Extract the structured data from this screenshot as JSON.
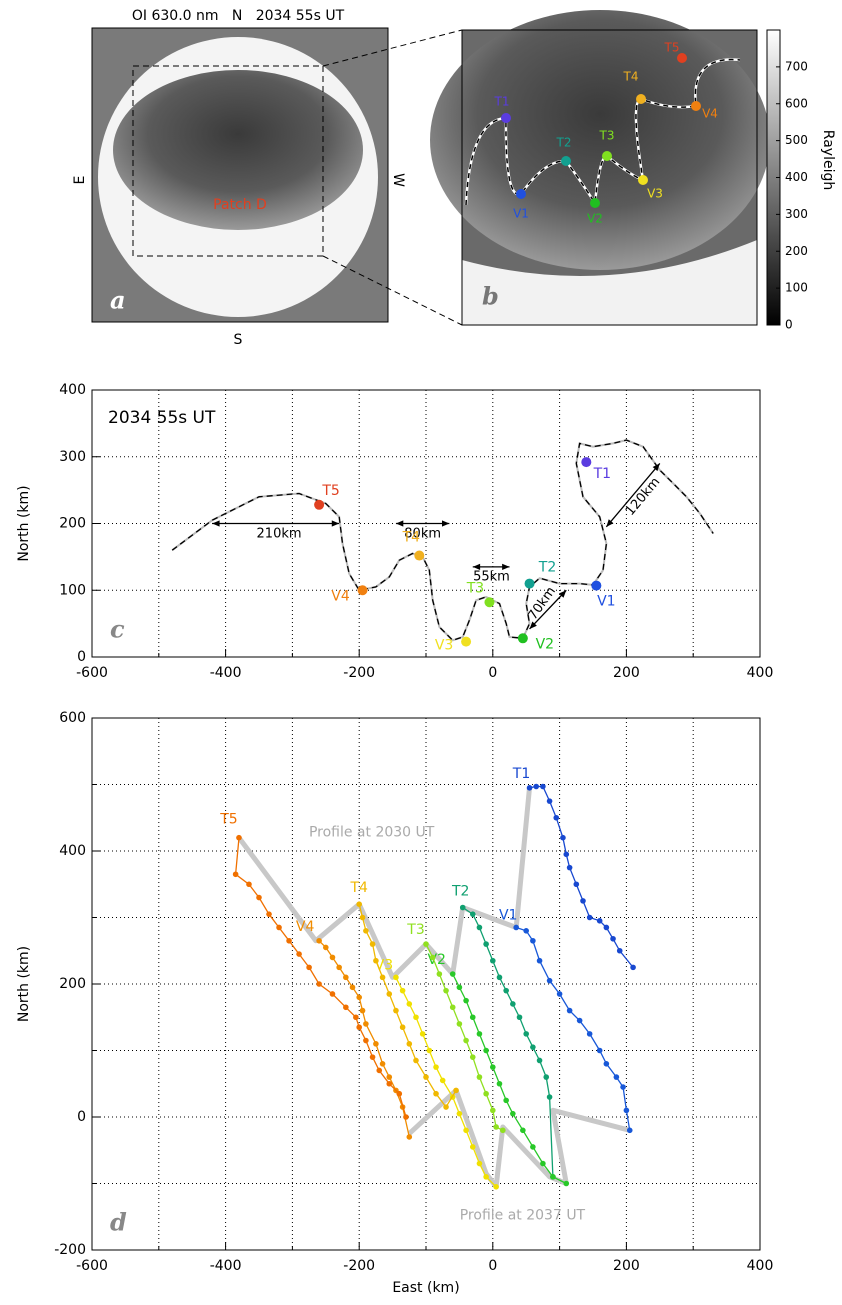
{
  "panel_a": {
    "title": "OI 630.0 nm   N   2034 55s UT",
    "east": "E",
    "west": "W",
    "south": "S",
    "patch": "Patch D",
    "letter": "a"
  },
  "panel_b": {
    "letter": "b"
  },
  "colorbar": {
    "label": "Rayleigh",
    "lim": [
      0,
      800
    ],
    "ticks": [
      0,
      100,
      200,
      300,
      400,
      500,
      600,
      700
    ]
  },
  "chart_data": [
    {
      "type": "line",
      "annotation": "2034 55s UT",
      "letter": "c",
      "ylabel": "North (km)",
      "xlim": [
        -600,
        400
      ],
      "xticks": [
        -600,
        -400,
        -200,
        0,
        200,
        400
      ],
      "xminor": [
        -500,
        -300,
        -100,
        100,
        300
      ],
      "ylim": [
        0,
        400
      ],
      "yticks": [
        0,
        100,
        200,
        300,
        400
      ],
      "grid": true,
      "profile": {
        "x": [
          -480,
          -420,
          -350,
          -290,
          -250,
          -230,
          -225,
          -215,
          -200,
          -175,
          -155,
          -140,
          -120,
          -105,
          -95,
          -90,
          -80,
          -60,
          -45,
          -35,
          -25,
          -10,
          10,
          20,
          25,
          45,
          55,
          50,
          55,
          70,
          100,
          130,
          150,
          165,
          170,
          160,
          135,
          125,
          130,
          150,
          180,
          200,
          225,
          250,
          270,
          290,
          310,
          330
        ],
        "y": [
          160,
          205,
          240,
          245,
          230,
          210,
          170,
          125,
          100,
          105,
          120,
          145,
          155,
          150,
          130,
          85,
          45,
          25,
          30,
          55,
          85,
          90,
          80,
          50,
          30,
          28,
          50,
          80,
          105,
          118,
          110,
          110,
          108,
          130,
          170,
          210,
          240,
          290,
          320,
          315,
          320,
          325,
          315,
          280,
          260,
          240,
          215,
          185
        ]
      },
      "points": [
        {
          "name": "T1",
          "color": "#5a3ce0",
          "x": 140,
          "y": 292
        },
        {
          "name": "V1",
          "color": "#2050e0",
          "x": 155,
          "y": 107
        },
        {
          "name": "T2",
          "color": "#12a090",
          "x": 55,
          "y": 110
        },
        {
          "name": "V2",
          "color": "#20c020",
          "x": 45,
          "y": 28
        },
        {
          "name": "T3",
          "color": "#80e020",
          "x": -5,
          "y": 82
        },
        {
          "name": "V3",
          "color": "#f0e020",
          "x": -40,
          "y": 23
        },
        {
          "name": "T4",
          "color": "#f0b020",
          "x": -110,
          "y": 152
        },
        {
          "name": "V4",
          "color": "#f08010",
          "x": -195,
          "y": 100
        },
        {
          "name": "T5",
          "color": "#e04020",
          "x": -260,
          "y": 228
        }
      ],
      "spans": [
        {
          "label": "210km"
        },
        {
          "label": "80km"
        },
        {
          "label": "55km"
        },
        {
          "label": "70km"
        },
        {
          "label": "120km"
        }
      ]
    },
    {
      "type": "line",
      "letter": "d",
      "xlabel": "East (km)",
      "ylabel": "North (km)",
      "xlim": [
        -600,
        400
      ],
      "xticks": [
        -600,
        -400,
        -200,
        0,
        200,
        400
      ],
      "xminor": [
        -500,
        -300,
        -100,
        100,
        300
      ],
      "ylim": [
        -200,
        600
      ],
      "yticks": [
        -200,
        0,
        200,
        400,
        600
      ],
      "yminor": [
        -100,
        100,
        300,
        500
      ],
      "grid": true,
      "profiles": [
        {
          "name": "Profile at 2030 UT",
          "color": "#c8c8c8",
          "x": [
            -380,
            -265,
            -200,
            -150,
            -100,
            -60,
            -45,
            35,
            55
          ],
          "y": [
            420,
            265,
            320,
            210,
            260,
            215,
            315,
            285,
            495
          ]
        },
        {
          "name": "Profile at 2037 UT",
          "color": "#c8c8c8",
          "x": [
            -125,
            -55,
            -10,
            5,
            15,
            85,
            110,
            90,
            205
          ],
          "y": [
            -25,
            40,
            -85,
            -105,
            -15,
            -90,
            -100,
            10,
            -20
          ]
        }
      ],
      "series": [
        {
          "name": "T1",
          "color": "#1848d0",
          "x": [
            55,
            65,
            75,
            85,
            95,
            105,
            110,
            115,
            125,
            135,
            145,
            160,
            170,
            180,
            190,
            210
          ],
          "y": [
            495,
            497,
            497,
            475,
            450,
            420,
            395,
            375,
            350,
            325,
            300,
            295,
            285,
            268,
            250,
            225
          ]
        },
        {
          "name": "V1",
          "color": "#1858d8",
          "x": [
            35,
            50,
            60,
            70,
            85,
            100,
            115,
            130,
            145,
            160,
            170,
            185,
            195,
            200,
            205
          ],
          "y": [
            285,
            280,
            265,
            235,
            205,
            185,
            160,
            145,
            125,
            100,
            80,
            60,
            45,
            10,
            -20
          ]
        },
        {
          "name": "T2",
          "color": "#10a070",
          "x": [
            -45,
            -30,
            -20,
            -10,
            0,
            10,
            20,
            30,
            40,
            50,
            60,
            70,
            80,
            85,
            90
          ],
          "y": [
            315,
            305,
            285,
            260,
            235,
            210,
            190,
            170,
            150,
            125,
            105,
            85,
            60,
            30,
            -90
          ]
        },
        {
          "name": "V2",
          "color": "#28c828",
          "x": [
            -60,
            -50,
            -40,
            -30,
            -20,
            -10,
            0,
            10,
            20,
            30,
            45,
            60,
            75,
            90,
            110
          ],
          "y": [
            215,
            195,
            175,
            150,
            125,
            100,
            75,
            50,
            25,
            5,
            -20,
            -45,
            -70,
            -90,
            -100
          ]
        },
        {
          "name": "T3",
          "color": "#90e020",
          "x": [
            -100,
            -90,
            -80,
            -70,
            -60,
            -50,
            -40,
            -30,
            -20,
            -10,
            0,
            5,
            15
          ],
          "y": [
            260,
            240,
            215,
            190,
            165,
            140,
            115,
            90,
            60,
            35,
            10,
            -15,
            -20
          ]
        },
        {
          "name": "V3",
          "color": "#f0e000",
          "x": [
            -145,
            -135,
            -125,
            -115,
            -105,
            -95,
            -85,
            -75,
            -60,
            -50,
            -40,
            -30,
            -20,
            -10,
            5
          ],
          "y": [
            210,
            190,
            170,
            150,
            125,
            100,
            75,
            55,
            30,
            5,
            -20,
            -45,
            -70,
            -90,
            -105
          ]
        },
        {
          "name": "T4",
          "color": "#f0b800",
          "x": [
            -200,
            -195,
            -190,
            -180,
            -175,
            -165,
            -155,
            -145,
            -135,
            -125,
            -115,
            -100,
            -85,
            -70,
            -55
          ],
          "y": [
            320,
            300,
            280,
            260,
            235,
            210,
            185,
            160,
            135,
            110,
            85,
            60,
            35,
            15,
            40
          ]
        },
        {
          "name": "V4",
          "color": "#f08c00",
          "x": [
            -260,
            -250,
            -240,
            -230,
            -220,
            -210,
            -200,
            -195,
            -190,
            -175,
            -165,
            -155,
            -145,
            -135,
            -125
          ],
          "y": [
            265,
            255,
            240,
            225,
            210,
            195,
            180,
            160,
            140,
            110,
            80,
            60,
            40,
            15,
            -30
          ]
        },
        {
          "name": "T5",
          "color": "#f07000",
          "x": [
            -380,
            -385,
            -365,
            -350,
            -335,
            -320,
            -305,
            -290,
            -275,
            -260,
            -240,
            -220,
            -205,
            -200,
            -190,
            -180,
            -170,
            -155,
            -140,
            -130
          ],
          "y": [
            420,
            365,
            350,
            330,
            305,
            285,
            265,
            245,
            225,
            200,
            185,
            165,
            150,
            135,
            115,
            90,
            70,
            50,
            35,
            0
          ]
        }
      ]
    }
  ]
}
